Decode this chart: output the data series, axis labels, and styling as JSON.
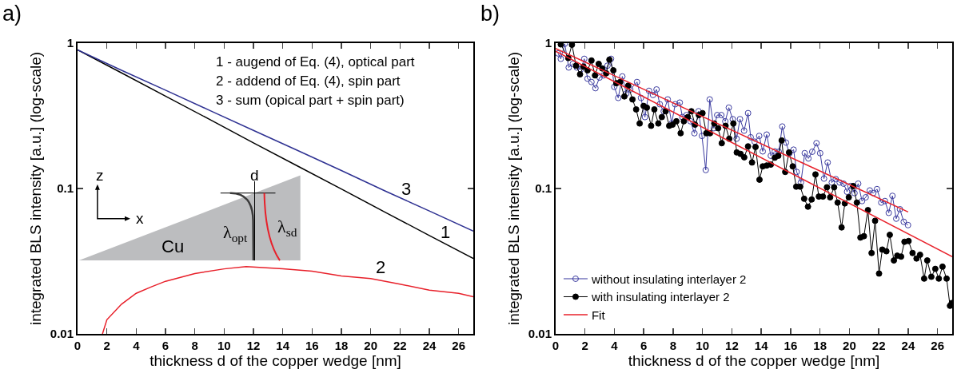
{
  "chart_data": [
    {
      "type": "line",
      "title": "a)",
      "xlabel": "thickness d of the copper wedge [nm]",
      "ylabel": "integrated BLS intensity [a.u.] (log-scale)",
      "log": "y",
      "xlim": [
        0,
        27
      ],
      "ylim": [
        0.01,
        1
      ],
      "xticks": [
        0,
        2,
        4,
        6,
        8,
        10,
        12,
        14,
        16,
        18,
        20,
        22,
        24,
        26
      ],
      "yticks": [
        0.01,
        0.1,
        1
      ],
      "grid": false,
      "legend": false,
      "line_style": "solid",
      "series": [
        {
          "color": "#000000",
          "x": [
            0,
            3,
            6,
            9,
            12,
            15,
            18,
            21,
            24,
            27
          ],
          "values": [
            0.9,
            0.624,
            0.432,
            0.299,
            0.206,
            0.143,
            0.0991,
            0.0686,
            0.0475,
            0.033
          ]
        },
        {
          "color": "#e8202a",
          "x": [
            1.7,
            2,
            3,
            4,
            5,
            6,
            8,
            10,
            11.5,
            14,
            16,
            18,
            20,
            22,
            24,
            26,
            27
          ],
          "values": [
            0.01,
            0.0125,
            0.016,
            0.019,
            0.021,
            0.023,
            0.026,
            0.028,
            0.029,
            0.028,
            0.027,
            0.025,
            0.024,
            0.022,
            0.02,
            0.019,
            0.018
          ]
        },
        {
          "color": "#2e3192",
          "x": [
            0,
            3,
            6,
            9,
            12,
            15,
            18,
            21,
            24,
            27
          ],
          "values": [
            0.9,
            0.65,
            0.475,
            0.345,
            0.251,
            0.183,
            0.133,
            0.096,
            0.07,
            0.051
          ]
        }
      ],
      "annotations": [
        "1 - augend of Eq. (4), optical part",
        "2 - addend of Eq. (4), spin part",
        "3 - sum (opical part + spin part)",
        "1",
        "2",
        "3",
        "z",
        "x",
        "d",
        "Cu",
        "λ$_{opt}$",
        "λ$_{sd}$"
      ]
    },
    {
      "type": "line",
      "title": "b)",
      "xlabel": "thickness d of the copper wedge [nm]",
      "ylabel": "integrated BLS intensity [a.u.] (log-scale)",
      "log": "y",
      "xlim": [
        0,
        27
      ],
      "ylim": [
        0.01,
        1
      ],
      "xticks": [
        0,
        2,
        4,
        6,
        8,
        10,
        12,
        14,
        16,
        18,
        20,
        22,
        24,
        26
      ],
      "yticks": [
        0.01,
        0.1,
        1
      ],
      "grid": false,
      "legend": "bottom left",
      "line_style": "solid",
      "series": [
        {
          "name": "without insulating interlayer 2",
          "color": "#3c3ca0",
          "marker": "circle-open",
          "x": [
            0.16,
            0.35,
            0.62,
            0.89,
            1.17,
            1.44,
            1.71,
            1.95,
            2.17,
            2.44,
            2.71,
            2.99,
            3.26,
            3.53,
            3.77,
            3.99,
            4.26,
            4.54,
            4.81,
            5.08,
            5.54,
            5.81,
            6.08,
            6.36,
            6.63,
            6.87,
            7.09,
            7.36,
            7.63,
            7.9,
            8.14,
            8.45,
            8.63,
            8.91,
            9.18,
            9.45,
            9.73,
            9.96,
            10.22,
            10.49,
            10.77,
            11,
            11.28,
            11.55,
            11.79,
            12.06,
            12.32,
            12.55,
            12.83,
            13.1,
            13.28,
            13.55,
            13.86,
            14.1,
            14.37,
            14.65,
            14.92,
            15.19,
            15.43,
            15.68,
            15.92,
            16.2,
            16.41,
            16.7,
            16.96,
            17.21,
            17.47,
            17.76,
            18.01,
            18.27,
            18.52,
            18.8,
            19.07,
            19.34,
            19.6,
            19.84,
            20.07,
            20.35,
            20.6,
            20.86,
            21.11,
            21.39,
            21.62,
            21.88,
            22.17,
            22.42,
            22.68,
            22.93,
            23.19,
            23.44,
            23.7,
            23.99
          ],
          "values": [
            0.85,
            0.78,
            0.99,
            0.68,
            0.72,
            0.68,
            0.66,
            0.78,
            0.57,
            0.54,
            0.49,
            0.58,
            0.6,
            0.7,
            0.78,
            0.5,
            0.42,
            0.59,
            0.45,
            0.48,
            0.54,
            0.42,
            0.31,
            0.47,
            0.44,
            0.48,
            0.38,
            0.34,
            0.41,
            0.28,
            0.38,
            0.39,
            0.31,
            0.32,
            0.29,
            0.24,
            0.34,
            0.23,
            0.134,
            0.41,
            0.26,
            0.32,
            0.32,
            0.29,
            0.36,
            0.3,
            0.22,
            0.3,
            0.25,
            0.33,
            0.225,
            0.21,
            0.23,
            0.18,
            0.235,
            0.168,
            0.18,
            0.179,
            0.267,
            0.207,
            0.175,
            0.185,
            0.13,
            0.11,
            0.175,
            0.161,
            0.179,
            0.205,
            0.175,
            0.117,
            0.151,
            0.11,
            0.116,
            0.11,
            0.108,
            0.095,
            0.104,
            0.093,
            0.108,
            0.082,
            0.087,
            0.097,
            0.093,
            0.099,
            0.08,
            0.082,
            0.068,
            0.089,
            0.062,
            0.072,
            0.059,
            0.056
          ]
        },
        {
          "name": "with insulating interlayer 2",
          "color": "#000000",
          "marker": "circle",
          "x": [
            0.35,
            0.86,
            1.11,
            1.39,
            1.66,
            1.89,
            2.17,
            2.44,
            2.68,
            2.93,
            3.17,
            3.44,
            3.66,
            3.93,
            4.13,
            4.39,
            4.68,
            4.94,
            5.23,
            5.48,
            5.72,
            5.99,
            6.21,
            6.5,
            6.72,
            6.99,
            7.23,
            7.49,
            7.73,
            7.96,
            8.22,
            8.51,
            8.73,
            9,
            9.24,
            9.49,
            9.75,
            10,
            10.26,
            10.51,
            10.8,
            11.06,
            11.31,
            11.57,
            11.82,
            12.1,
            12.33,
            12.59,
            12.84,
            13.1,
            13.37,
            13.61,
            13.88,
            14.1,
            14.37,
            14.65,
            14.92,
            15.16,
            15.39,
            15.63,
            15.89,
            16.14,
            16.38,
            16.65,
            16.92,
            17.18,
            17.43,
            17.69,
            17.92,
            18.2,
            18.47,
            18.69,
            18.96,
            19.2,
            19.47,
            19.69,
            19.96,
            20.26,
            20.51,
            20.75,
            20.99,
            21.26,
            21.51,
            21.75,
            22.02,
            22.24,
            22.52,
            22.75,
            23.03,
            23.26,
            23.52,
            23.75,
            24.03,
            24.3,
            24.57,
            24.81,
            25.09,
            25.3,
            25.58,
            25.85,
            26.09,
            26.34,
            26.62,
            26.85,
            26.97
          ],
          "values": [
            0.98,
            0.79,
            0.975,
            0.7,
            0.61,
            0.69,
            0.65,
            0.76,
            0.6,
            0.72,
            0.67,
            0.62,
            0.77,
            0.65,
            0.53,
            0.54,
            0.43,
            0.51,
            0.41,
            0.35,
            0.28,
            0.37,
            0.36,
            0.27,
            0.35,
            0.28,
            0.31,
            0.34,
            0.27,
            0.275,
            0.29,
            0.24,
            0.29,
            0.31,
            0.34,
            0.275,
            0.32,
            0.33,
            0.24,
            0.24,
            0.28,
            0.26,
            0.205,
            0.27,
            0.22,
            0.28,
            0.177,
            0.173,
            0.164,
            0.195,
            0.151,
            0.193,
            0.115,
            0.142,
            0.144,
            0.146,
            0.163,
            0.168,
            0.214,
            0.13,
            0.177,
            0.142,
            0.103,
            0.103,
            0.085,
            0.075,
            0.084,
            0.125,
            0.088,
            0.088,
            0.102,
            0.087,
            0.102,
            0.08,
            0.054,
            0.079,
            0.087,
            0.104,
            0.08,
            0.046,
            0.047,
            0.071,
            0.036,
            0.06,
            0.026,
            0.038,
            0.037,
            0.048,
            0.032,
            0.0345,
            0.034,
            0.043,
            0.0435,
            0.036,
            0.033,
            0.035,
            0.024,
            0.032,
            0.0247,
            0.028,
            0.024,
            0.029,
            0.024,
            0.0156,
            0.0163
          ]
        },
        {
          "name": "Fit",
          "color": "#e8202a",
          "marker": "none",
          "x": [
            0,
            27
          ],
          "values": [
            0.88,
            0.034
          ]
        },
        {
          "color": "#e8202a",
          "marker": "none",
          "x": [
            0,
            24
          ],
          "values": [
            0.92,
            0.069
          ]
        }
      ]
    }
  ]
}
